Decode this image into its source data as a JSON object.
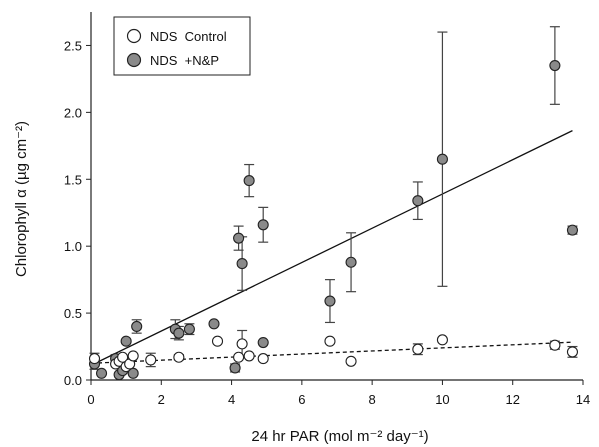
{
  "chart_data": {
    "type": "scatter",
    "title": "",
    "xlabel": "24 hr PAR (mol m⁻² day⁻¹)",
    "ylabel": "Chlorophyll α (µg cm⁻²)",
    "xlim": [
      0,
      14
    ],
    "ylim": [
      0,
      2.75
    ],
    "xticks": [
      "0",
      "2",
      "4",
      "6",
      "8",
      "10",
      "12",
      "14"
    ],
    "yticks": [
      "0.0",
      "0.5",
      "1.0",
      "1.5",
      "2.0",
      "2.5"
    ],
    "grid": false,
    "legend_position": "top-left",
    "series": [
      {
        "name": "NDS  Control",
        "marker": "open-circle",
        "color": "#ffffff",
        "trendline": {
          "style": "dashed",
          "slope": 0.0115,
          "intercept": 0.125
        },
        "points": [
          {
            "x": 0.1,
            "y": 0.16,
            "err": 0.04
          },
          {
            "x": 0.7,
            "y": 0.12,
            "err": 0.0
          },
          {
            "x": 0.8,
            "y": 0.14,
            "err": 0.0
          },
          {
            "x": 0.9,
            "y": 0.17,
            "err": 0.0
          },
          {
            "x": 1.0,
            "y": 0.1,
            "err": 0.0
          },
          {
            "x": 1.1,
            "y": 0.12,
            "err": 0.0
          },
          {
            "x": 1.2,
            "y": 0.18,
            "err": 0.0
          },
          {
            "x": 1.7,
            "y": 0.15,
            "err": 0.05
          },
          {
            "x": 2.5,
            "y": 0.17,
            "err": 0.02
          },
          {
            "x": 3.6,
            "y": 0.29,
            "err": 0.0
          },
          {
            "x": 4.2,
            "y": 0.17,
            "err": 0.0
          },
          {
            "x": 4.3,
            "y": 0.27,
            "err": 0.1
          },
          {
            "x": 4.5,
            "y": 0.18,
            "err": 0.0
          },
          {
            "x": 4.9,
            "y": 0.16,
            "err": 0.0
          },
          {
            "x": 6.8,
            "y": 0.29,
            "err": 0.0
          },
          {
            "x": 7.4,
            "y": 0.14,
            "err": 0.0
          },
          {
            "x": 9.3,
            "y": 0.23,
            "err": 0.04
          },
          {
            "x": 10.0,
            "y": 0.3,
            "err": 0.0
          },
          {
            "x": 13.2,
            "y": 0.26,
            "err": 0.03
          },
          {
            "x": 13.7,
            "y": 0.21,
            "err": 0.04
          }
        ]
      },
      {
        "name": "NDS  +N&P",
        "marker": "filled-circle",
        "color": "#8a8a8a",
        "trendline": {
          "style": "solid",
          "slope": 0.128,
          "intercept": 0.11
        },
        "points": [
          {
            "x": 0.1,
            "y": 0.12,
            "err": 0.04
          },
          {
            "x": 0.3,
            "y": 0.05,
            "err": 0.0
          },
          {
            "x": 0.7,
            "y": 0.16,
            "err": 0.03
          },
          {
            "x": 0.8,
            "y": 0.04,
            "err": 0.0
          },
          {
            "x": 0.9,
            "y": 0.07,
            "err": 0.0
          },
          {
            "x": 1.0,
            "y": 0.29,
            "err": 0.0
          },
          {
            "x": 1.2,
            "y": 0.05,
            "err": 0.0
          },
          {
            "x": 1.3,
            "y": 0.4,
            "err": 0.05
          },
          {
            "x": 2.4,
            "y": 0.38,
            "err": 0.07
          },
          {
            "x": 2.5,
            "y": 0.35,
            "err": 0.05
          },
          {
            "x": 2.8,
            "y": 0.38,
            "err": 0.04
          },
          {
            "x": 3.5,
            "y": 0.42,
            "err": 0.0
          },
          {
            "x": 4.1,
            "y": 0.09,
            "err": 0.03
          },
          {
            "x": 4.2,
            "y": 1.06,
            "err": 0.09
          },
          {
            "x": 4.3,
            "y": 0.87,
            "err": 0.2
          },
          {
            "x": 4.5,
            "y": 1.49,
            "err": 0.12
          },
          {
            "x": 4.9,
            "y": 1.16,
            "err": 0.13
          },
          {
            "x": 4.9,
            "y": 0.28,
            "err": 0.0
          },
          {
            "x": 6.8,
            "y": 0.59,
            "err": 0.16
          },
          {
            "x": 7.4,
            "y": 0.88,
            "err": 0.22
          },
          {
            "x": 9.3,
            "y": 1.34,
            "err": 0.14
          },
          {
            "x": 10.0,
            "y": 1.65,
            "err": 0.95
          },
          {
            "x": 13.2,
            "y": 2.35,
            "err": 0.29
          },
          {
            "x": 13.7,
            "y": 1.12,
            "err": 0.03
          }
        ]
      }
    ]
  }
}
